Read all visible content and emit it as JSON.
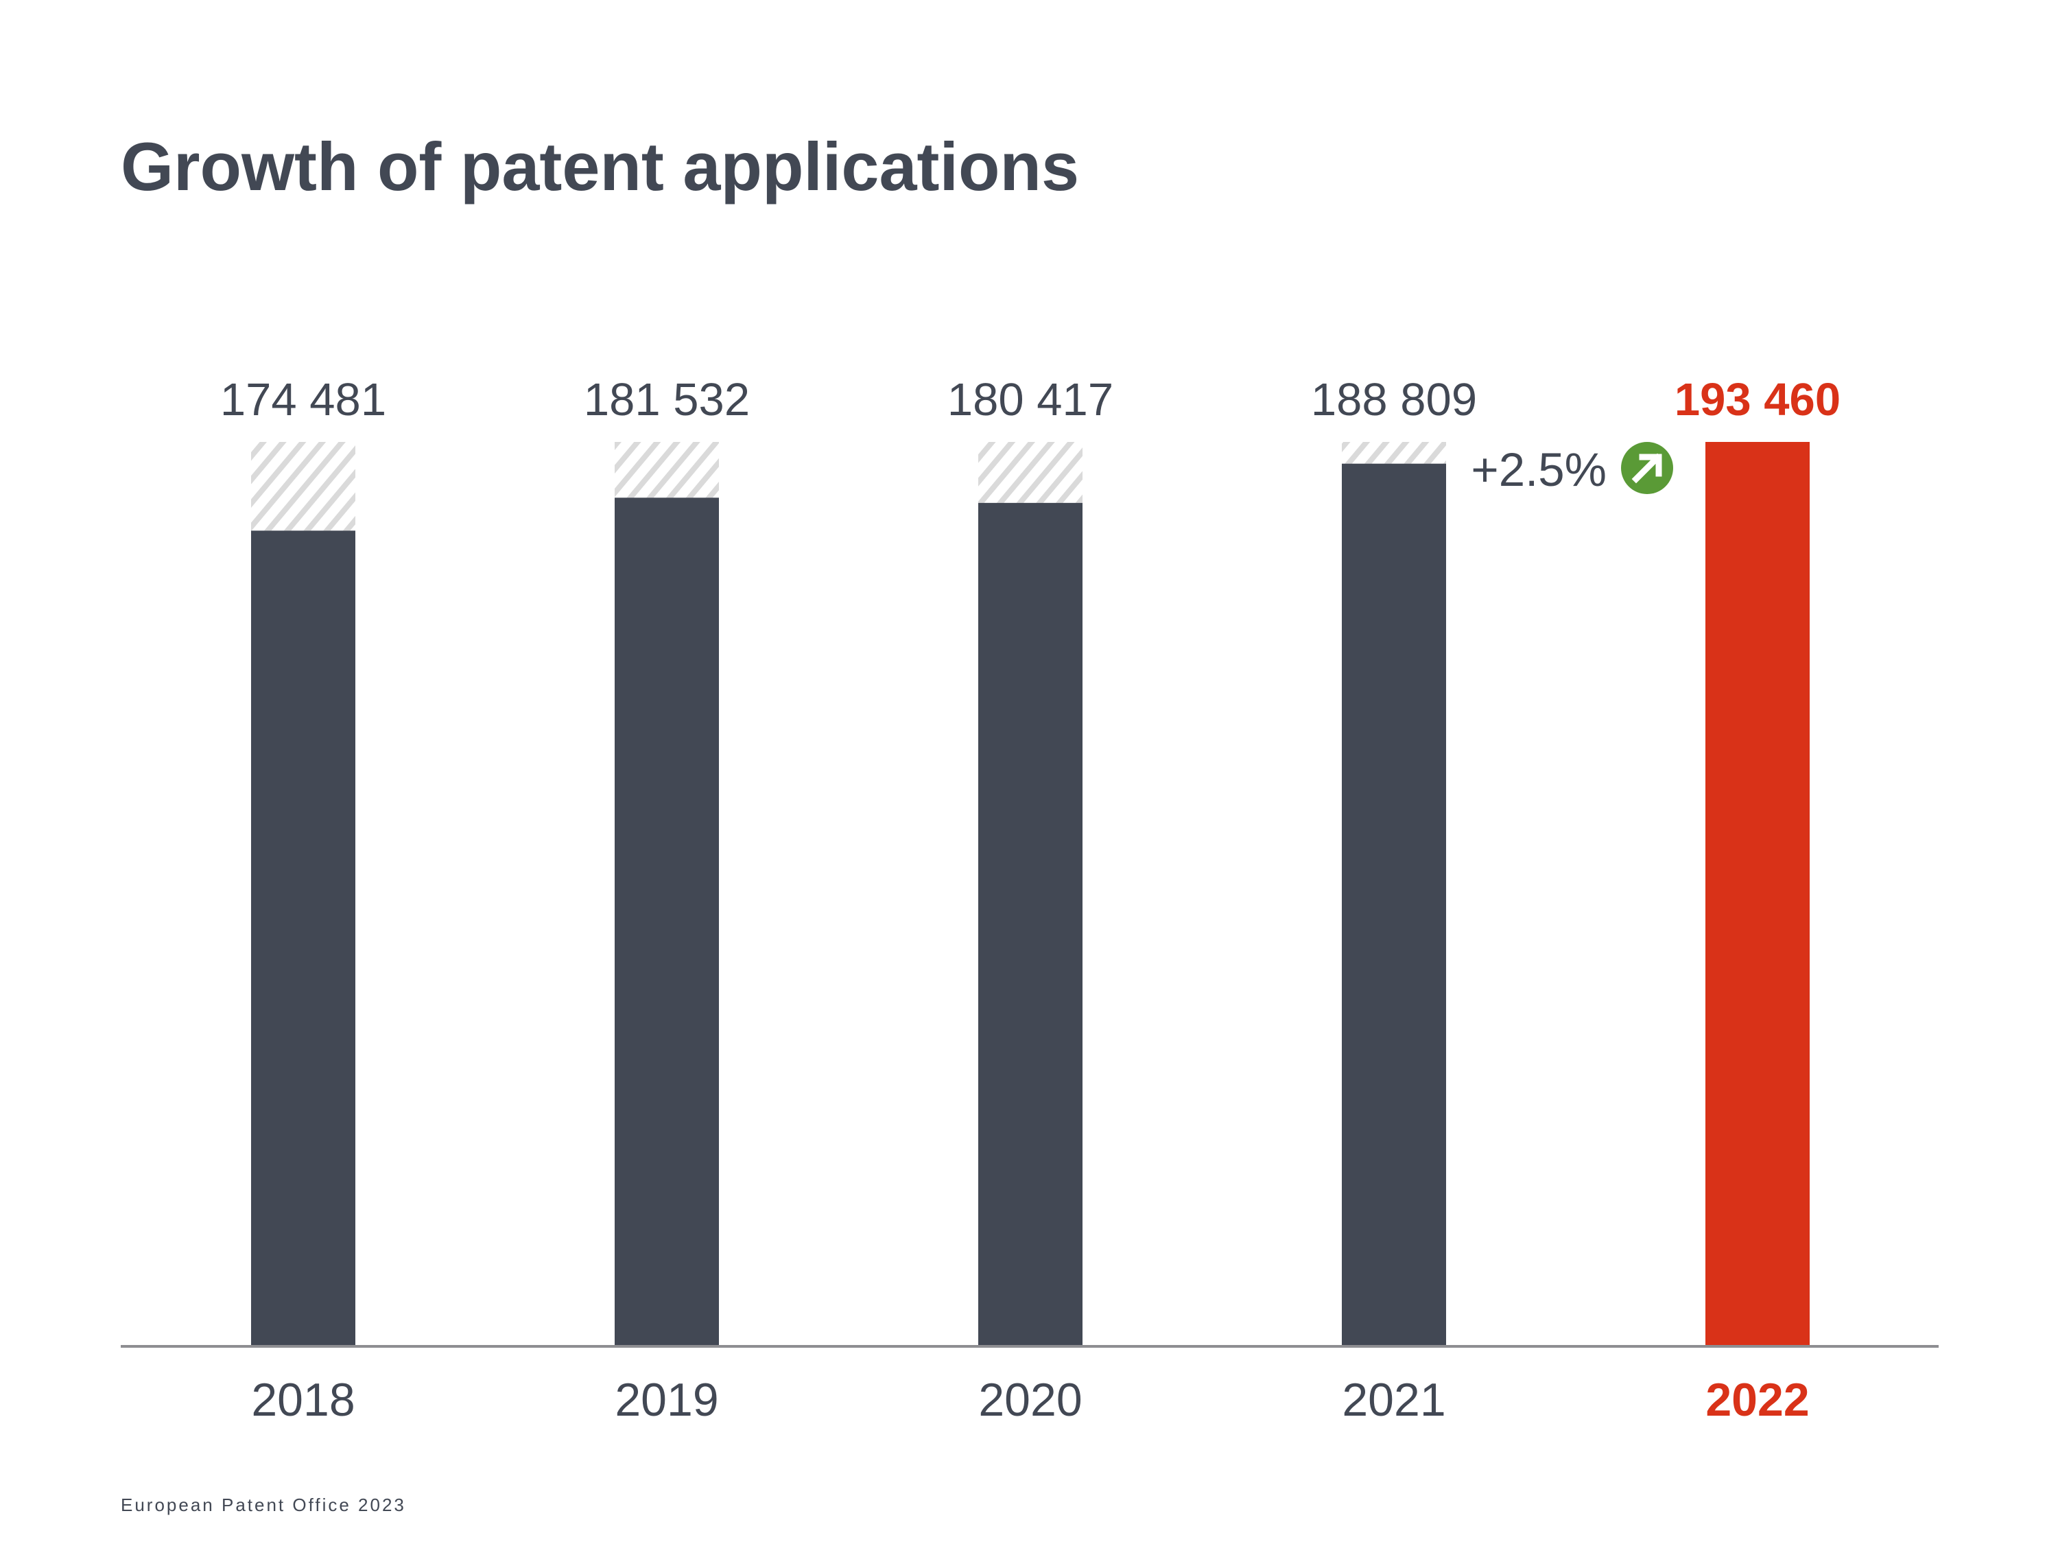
{
  "title": "Growth of patent applications",
  "footer": "European Patent Office 2023",
  "colors": {
    "bar": "#424854",
    "highlight": "#d93218",
    "hatch": "#dadada",
    "axis": "#8e8e92",
    "text": "#424854",
    "growth_badge": "#5a9a36"
  },
  "chart_data": {
    "type": "bar",
    "title": "Growth of patent applications",
    "xlabel": "",
    "ylabel": "",
    "categories": [
      "2018",
      "2019",
      "2020",
      "2021",
      "2022"
    ],
    "values": [
      174481,
      181532,
      180417,
      188809,
      193460
    ],
    "value_labels": [
      "174 481",
      "181 532",
      "180 417",
      "188 809",
      "193 460"
    ],
    "highlight_category": "2022",
    "gap_to_latest_hatched": true,
    "ylim": [
      0,
      193460
    ],
    "grid": false,
    "annotation": {
      "text": "+2.5%",
      "between": [
        "2021",
        "2022"
      ],
      "icon": "arrow-up-right-icon"
    }
  }
}
